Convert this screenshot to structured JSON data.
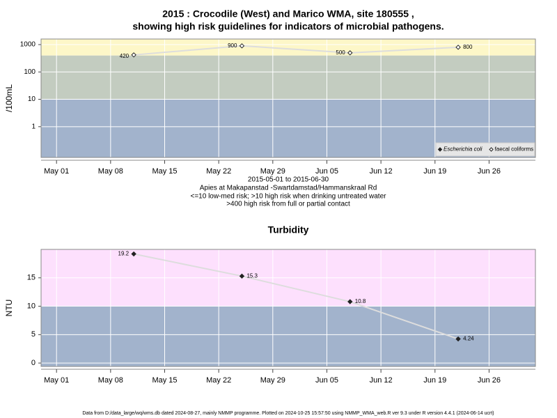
{
  "chart_data": [
    {
      "type": "line",
      "title": "2015 : Crocodile (West) and Marico WMA, site 180555 ,",
      "subtitle": "showing high risk guidelines for indicators of microbial pathogens.",
      "y_label": "/100mL",
      "log_y": true,
      "grid": true,
      "legend": "bottom-right",
      "x": [
        "2015-05-11",
        "2015-05-25",
        "2015-06-08",
        "2015-06-22"
      ],
      "xlim": [
        "2015-04-29",
        "2015-07-02"
      ],
      "xticks": [
        {
          "value": "2015-05-01",
          "label": "May 01"
        },
        {
          "value": "2015-05-08",
          "label": "May 08"
        },
        {
          "value": "2015-05-15",
          "label": "May 15"
        },
        {
          "value": "2015-05-22",
          "label": "May 22"
        },
        {
          "value": "2015-05-29",
          "label": "May 29"
        },
        {
          "value": "2015-06-05",
          "label": "Jun 05"
        },
        {
          "value": "2015-06-12",
          "label": "Jun 12"
        },
        {
          "value": "2015-06-19",
          "label": "Jun 19"
        },
        {
          "value": "2015-06-26",
          "label": "Jun 26"
        }
      ],
      "ylim": [
        0.075,
        1600
      ],
      "yticks": [
        1,
        10,
        100,
        1000
      ],
      "band_breaks": [
        10,
        400
      ],
      "band_colors": [
        "#a2b3cc",
        "#c3ccc0",
        "#fdf7c8"
      ],
      "series": [
        {
          "name": "Escherichia coli",
          "color": "#222222",
          "marker": "filled",
          "values": [
            null,
            null,
            null,
            null
          ]
        },
        {
          "name": "faecal coliforms",
          "color": "#222222",
          "marker": "hollow",
          "values": [
            420,
            900,
            500,
            800
          ]
        }
      ]
    },
    {
      "type": "line",
      "title": "Turbidity",
      "y_label": "NTU",
      "log_y": false,
      "grid": true,
      "x": [
        "2015-05-11",
        "2015-05-25",
        "2015-06-08",
        "2015-06-22"
      ],
      "xlim": [
        "2015-04-29",
        "2015-07-02"
      ],
      "xticks": [
        {
          "value": "2015-05-01",
          "label": "May 01"
        },
        {
          "value": "2015-05-08",
          "label": "May 08"
        },
        {
          "value": "2015-05-15",
          "label": "May 15"
        },
        {
          "value": "2015-05-22",
          "label": "May 22"
        },
        {
          "value": "2015-05-29",
          "label": "May 29"
        },
        {
          "value": "2015-06-05",
          "label": "Jun 05"
        },
        {
          "value": "2015-06-12",
          "label": "Jun 12"
        },
        {
          "value": "2015-06-19",
          "label": "Jun 19"
        },
        {
          "value": "2015-06-26",
          "label": "Jun 26"
        }
      ],
      "ylim": [
        -0.6,
        20
      ],
      "yticks": [
        0,
        5,
        10,
        15
      ],
      "band_breaks": [
        10
      ],
      "band_colors": [
        "#a2b3cc",
        "#fde0fd"
      ],
      "series": [
        {
          "name": "Turbidity",
          "color": "#222222",
          "marker": "filled",
          "values": [
            19.2,
            15.3,
            10.8,
            4.24
          ]
        }
      ]
    }
  ],
  "notes": [
    "2015-05-01 to 2015-06-30",
    "Apies at Makapanstad -Swartdamstad/Hammanskraal Rd",
    "<=10 low-med risk; >10 high risk when drinking untreated water",
    ">400 high risk from full or partial contact"
  ],
  "footer": "Data from D:/data_large/wq/wms.db dated 2024-08-27, mainly NMMP programme. Plotted on 2024-10-25 15:57:50 using NMMP_WMA_web.R ver 9.3 under R version 4.4.1 (2024-06-14 ucrt)"
}
